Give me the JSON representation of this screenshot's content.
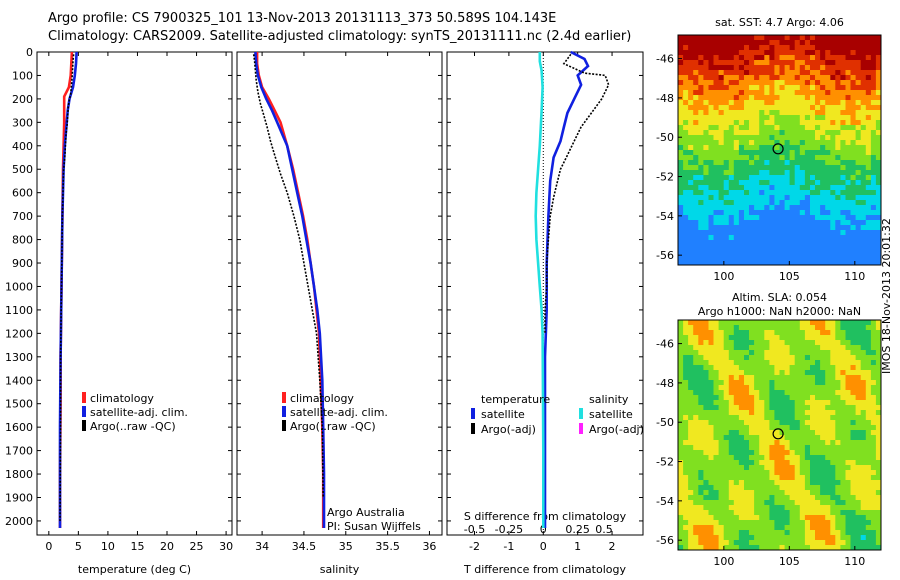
{
  "header": {
    "line1": "Argo profile: CS 7900325_101 13-Nov-2013 20131113_373 50.589S 104.143E",
    "line2": "Climatology: CARS2009. Satellite-adjusted climatology: synTS_20131111.nc (2.4d earlier)"
  },
  "colors": {
    "climatology": "#ff2020",
    "satellite": "#1020e0",
    "argo": "#000000",
    "sat_diff": "#20e0e0",
    "argo_adj_sal": "#ff20ff"
  },
  "chart_data": [
    {
      "type": "line",
      "xlabel": "temperature (deg C)",
      "ylabel": "",
      "xlim": [
        -2,
        31
      ],
      "ylim": [
        2060,
        0
      ],
      "xticks": [
        0,
        5,
        10,
        15,
        20,
        25,
        30
      ],
      "yticks": [
        0,
        100,
        200,
        300,
        400,
        500,
        600,
        700,
        800,
        900,
        1000,
        1100,
        1200,
        1300,
        1400,
        1500,
        1600,
        1700,
        1800,
        1900,
        2000
      ],
      "legend": [
        "climatology",
        "satellite-adj. clim.",
        "Argo(..raw -QC)"
      ],
      "legend_position": "lower-right",
      "series": [
        {
          "name": "climatology",
          "x": [
            3.9,
            3.8,
            3.7,
            3.4,
            2.6,
            2.6,
            2.5,
            2.4,
            2.3,
            2.2,
            2.1,
            2.0,
            2.0,
            1.9,
            1.9
          ],
          "y": [
            0,
            50,
            100,
            150,
            190,
            300,
            400,
            500,
            700,
            900,
            1100,
            1300,
            1500,
            1800,
            2030
          ]
        },
        {
          "name": "satellite-adj. clim.",
          "x": [
            4.7,
            4.6,
            4.4,
            4.1,
            3.5,
            3.2,
            2.7,
            2.5,
            2.3,
            2.2,
            2.1,
            2.0,
            1.9,
            1.9
          ],
          "y": [
            0,
            50,
            100,
            150,
            200,
            250,
            400,
            500,
            700,
            900,
            1100,
            1300,
            1600,
            2030
          ]
        },
        {
          "name": "Argo(..raw -QC)",
          "x": [
            4.2,
            4.1,
            4.0,
            3.9,
            3.7,
            3.5,
            3.3,
            3.2,
            3.1,
            2.9,
            2.8,
            2.7,
            2.5,
            2.4,
            2.3,
            2.2,
            2.1,
            2.0,
            2.0,
            1.9
          ],
          "y": [
            10,
            40,
            80,
            120,
            180,
            200,
            230,
            270,
            310,
            350,
            400,
            450,
            500,
            600,
            700,
            900,
            1100,
            1300,
            1600,
            2000
          ]
        }
      ]
    },
    {
      "type": "line",
      "xlabel": "salinity",
      "ylabel": "",
      "xlim": [
        33.7,
        36.15
      ],
      "ylim": [
        2060,
        0
      ],
      "xticks": [
        34,
        34.5,
        35,
        35.5,
        36
      ],
      "legend": [
        "climatology",
        "satellite-adj. clim.",
        "Argo(..raw -QC)"
      ],
      "legend_position": "lower-right",
      "annotations": [
        "Argo Australia",
        "PI: Susan Wijffels"
      ],
      "series": [
        {
          "name": "climatology",
          "x": [
            33.94,
            33.94,
            33.96,
            34.0,
            34.08,
            34.15,
            34.22,
            34.3,
            34.37,
            34.43,
            34.49,
            34.54,
            34.58,
            34.62,
            34.65,
            34.68,
            34.7,
            34.72,
            34.73,
            34.73
          ],
          "y": [
            0,
            50,
            100,
            150,
            200,
            250,
            300,
            400,
            500,
            600,
            700,
            800,
            900,
            1000,
            1100,
            1200,
            1400,
            1600,
            1800,
            2030
          ]
        },
        {
          "name": "satellite-adj. clim.",
          "x": [
            33.92,
            33.93,
            33.95,
            33.99,
            34.05,
            34.12,
            34.18,
            34.24,
            34.3,
            34.36,
            34.42,
            34.48,
            34.53,
            34.58,
            34.62,
            34.66,
            34.69,
            34.72,
            34.73,
            34.74,
            34.74
          ],
          "y": [
            0,
            50,
            100,
            150,
            200,
            250,
            300,
            350,
            400,
            500,
            600,
            700,
            800,
            900,
            1000,
            1100,
            1200,
            1400,
            1600,
            1800,
            2030
          ]
        },
        {
          "name": "Argo(..raw -QC)",
          "x": [
            33.9,
            33.91,
            33.92,
            33.93,
            33.95,
            33.98,
            34.02,
            34.06,
            34.1,
            34.15,
            34.22,
            34.3,
            34.38,
            34.45,
            34.5,
            34.55,
            34.6,
            34.65,
            34.69,
            34.72,
            34.73
          ],
          "y": [
            10,
            40,
            80,
            120,
            170,
            220,
            270,
            320,
            380,
            440,
            520,
            600,
            700,
            800,
            900,
            1000,
            1100,
            1200,
            1400,
            1600,
            1900
          ]
        }
      ]
    },
    {
      "type": "line",
      "xlabel": "T difference from climatology",
      "ylabel": "",
      "xlim": [
        -2.8,
        2.9
      ],
      "ylim": [
        2060,
        0
      ],
      "xticks": [
        -2,
        -1,
        0,
        1,
        2
      ],
      "secondary_xlabel": "S difference from climatology",
      "secondary_xticks": [
        "-0.5",
        "-0.25",
        "0",
        "0.25",
        "0.5"
      ],
      "legend_groups": [
        {
          "title": "temperature",
          "items": [
            "satellite",
            "Argo(-adj)"
          ]
        },
        {
          "title": "salinity",
          "items": [
            "satellite",
            "Argo(-adj)"
          ]
        }
      ],
      "legend_position": "lower-center",
      "series": [
        {
          "name": "satellite",
          "group": "temperature",
          "x": [
            0.8,
            1.2,
            1.3,
            1.0,
            1.1,
            0.9,
            0.7,
            0.6,
            0.5,
            0.3,
            0.2,
            0.15,
            0.1,
            0.1,
            0.05,
            0.05,
            0.05
          ],
          "y": [
            0,
            30,
            60,
            100,
            140,
            200,
            260,
            320,
            380,
            450,
            550,
            700,
            900,
            1100,
            1300,
            1600,
            2030
          ]
        },
        {
          "name": "satellite",
          "group": "salinity",
          "x": [
            -0.1,
            -0.1,
            -0.05,
            -0.02,
            -0.05,
            -0.1,
            -0.15,
            -0.2,
            -0.22,
            -0.2,
            -0.15,
            -0.1,
            -0.05,
            -0.02,
            -0.01,
            0,
            0
          ],
          "y": [
            0,
            40,
            80,
            150,
            250,
            400,
            500,
            600,
            700,
            800,
            900,
            1000,
            1100,
            1200,
            1400,
            1700,
            2030
          ]
        },
        {
          "name": "Argo(-adj)",
          "group": "temperature",
          "x": [
            0.8,
            0.6,
            1.2,
            1.8,
            1.9,
            1.7,
            1.4,
            1.1,
            0.9,
            0.7,
            0.5,
            0.4,
            0.3,
            0.2,
            0.15,
            0.1,
            0.1,
            0.05,
            0.05
          ],
          "y": [
            10,
            50,
            90,
            100,
            140,
            200,
            260,
            320,
            380,
            440,
            500,
            560,
            620,
            700,
            800,
            900,
            1000,
            1100,
            1200
          ]
        }
      ]
    },
    {
      "type": "heatmap",
      "title": "sat. SST: 4.7 Argo: 4.06",
      "xlabel": "",
      "ylabel": "",
      "xlim": [
        96.5,
        112
      ],
      "ylim": [
        -56.5,
        -44.8
      ],
      "xticks": [
        100,
        105,
        110
      ],
      "yticks": [
        -46,
        -48,
        -50,
        -52,
        -54,
        -56
      ],
      "marker": {
        "lon": 104.143,
        "lat": -50.589
      }
    },
    {
      "type": "heatmap",
      "title": "Altim. SLA: 0.054",
      "subtitle": "Argo h1000: NaN h2000: NaN",
      "xlabel": "",
      "ylabel": "",
      "xlim": [
        96.5,
        112
      ],
      "ylim": [
        -56.5,
        -44.8
      ],
      "xticks": [
        100,
        105,
        110
      ],
      "yticks": [
        -46,
        -48,
        -50,
        -52,
        -54,
        -56
      ],
      "marker": {
        "lon": 104.143,
        "lat": -50.589
      }
    }
  ],
  "footer": {
    "stamp": "IMOS 18-Nov-2013 20:01:32"
  }
}
